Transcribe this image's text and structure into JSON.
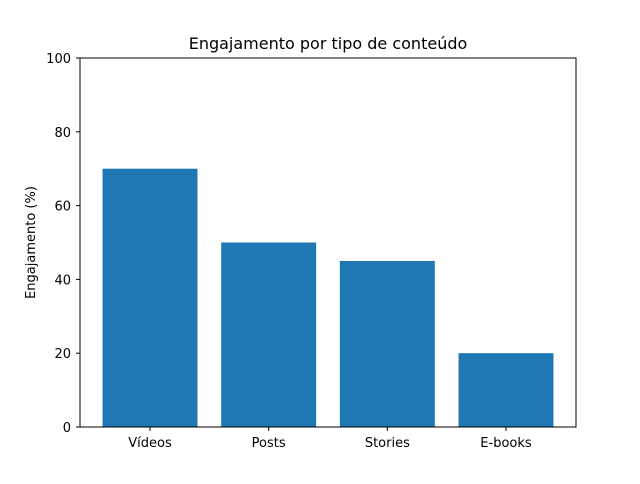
{
  "chart_data": {
    "type": "bar",
    "title": "Engajamento por tipo de conteúdo",
    "xlabel": "",
    "ylabel": "Engajamento (%)",
    "categories": [
      "Vídeos",
      "Posts",
      "Stories",
      "E-books"
    ],
    "values": [
      70,
      50,
      45,
      20
    ],
    "ylim": [
      0,
      100
    ],
    "yticks": [
      "0",
      "20",
      "40",
      "60",
      "80",
      "100"
    ],
    "grid": false,
    "bar_color": "#1f77b4"
  }
}
